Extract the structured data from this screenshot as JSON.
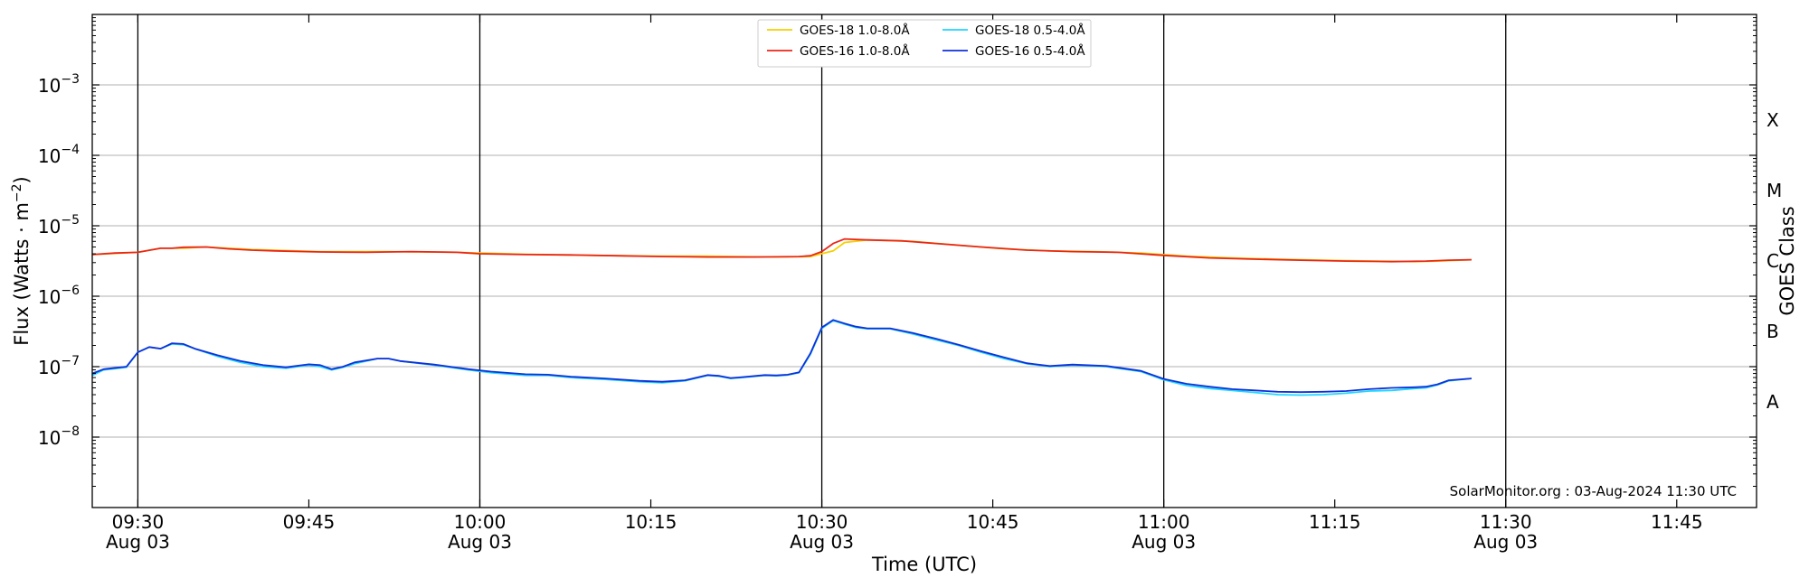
{
  "chart_data": {
    "type": "line",
    "xlabel": "Time (UTC)",
    "ylabel_main": "Flux (Watts · m",
    "ylabel_sup": "−2",
    "ylabel_close": ")",
    "right_label": "GOES Class",
    "y_scale": "log",
    "ylim": [
      1e-09,
      0.01
    ],
    "xlim": [
      "09:26",
      "11:52"
    ],
    "grid": "horizontal at each decade",
    "legend_position": "top-center",
    "credit": "SolarMonitor.org : 03-Aug-2024 11:30 UTC",
    "y_ticks": [
      {
        "value": 1e-08,
        "base": "10",
        "exp": "−8"
      },
      {
        "value": 1e-07,
        "base": "10",
        "exp": "−7"
      },
      {
        "value": 1e-06,
        "base": "10",
        "exp": "−6"
      },
      {
        "value": 1e-05,
        "base": "10",
        "exp": "−5"
      },
      {
        "value": 0.0001,
        "base": "10",
        "exp": "−4"
      },
      {
        "value": 0.001,
        "base": "10",
        "exp": "−3"
      }
    ],
    "x_ticks": [
      {
        "time": "09:30",
        "label": "09:30",
        "sub": "Aug 03",
        "major": true
      },
      {
        "time": "09:45",
        "label": "09:45",
        "sub": "",
        "major": false
      },
      {
        "time": "10:00",
        "label": "10:00",
        "sub": "Aug 03",
        "major": true
      },
      {
        "time": "10:15",
        "label": "10:15",
        "sub": "",
        "major": false
      },
      {
        "time": "10:30",
        "label": "10:30",
        "sub": "Aug 03",
        "major": true
      },
      {
        "time": "10:45",
        "label": "10:45",
        "sub": "",
        "major": false
      },
      {
        "time": "11:00",
        "label": "11:00",
        "sub": "Aug 03",
        "major": true
      },
      {
        "time": "11:15",
        "label": "11:15",
        "sub": "",
        "major": false
      },
      {
        "time": "11:30",
        "label": "11:30",
        "sub": "Aug 03",
        "major": true
      },
      {
        "time": "11:45",
        "label": "11:45",
        "sub": "",
        "major": false
      }
    ],
    "classes": [
      {
        "label": "A",
        "value": 3.16e-08
      },
      {
        "label": "B",
        "value": 3.16e-07
      },
      {
        "label": "C",
        "value": 3.16e-06
      },
      {
        "label": "M",
        "value": 3.16e-05
      },
      {
        "label": "X",
        "value": 0.000316
      }
    ],
    "series": [
      {
        "name": "GOES-18 1.0-8.0Å",
        "color": "#f5d000",
        "x": [
          "09:26",
          "09:30",
          "09:32",
          "09:34",
          "09:36",
          "09:40",
          "09:46",
          "09:52",
          "09:58",
          "10:04",
          "10:10",
          "10:16",
          "10:20",
          "10:26",
          "10:29",
          "10:31",
          "10:32",
          "10:34",
          "10:38",
          "10:42",
          "10:46",
          "10:50",
          "10:54",
          "10:58",
          "11:02",
          "11:06",
          "11:10",
          "11:16",
          "11:22",
          "11:24",
          "11:26",
          "11:27"
        ],
        "y": [
          3.9e-06,
          4.2e-06,
          4.8e-06,
          4.8e-06,
          5e-06,
          4.6e-06,
          4.3e-06,
          4.3e-06,
          4.2e-06,
          3.95e-06,
          3.8e-06,
          3.7e-06,
          3.7e-06,
          3.6e-06,
          3.65e-06,
          4.4e-06,
          5.8e-06,
          6.3e-06,
          6e-06,
          5.3e-06,
          4.7e-06,
          4.4e-06,
          4.3e-06,
          4.1e-06,
          3.7e-06,
          3.5e-06,
          3.35e-06,
          3.2e-06,
          3.1e-06,
          3.15e-06,
          3.25e-06,
          3.3e-06
        ]
      },
      {
        "name": "GOES-16 1.0-8.0Å",
        "color": "#e8261a",
        "x": [
          "09:26",
          "09:28",
          "09:30",
          "09:32",
          "09:33",
          "09:34",
          "09:36",
          "09:38",
          "09:40",
          "09:42",
          "09:46",
          "09:50",
          "09:54",
          "09:58",
          "10:00",
          "10:04",
          "10:08",
          "10:12",
          "10:16",
          "10:20",
          "10:24",
          "10:28",
          "10:29",
          "10:30",
          "10:31",
          "10:32",
          "10:34",
          "10:37",
          "10:40",
          "10:44",
          "10:48",
          "10:52",
          "10:56",
          "11:00",
          "11:04",
          "11:08",
          "11:12",
          "11:16",
          "11:20",
          "11:23",
          "11:25",
          "11:27"
        ],
        "y": [
          3.9e-06,
          4.1e-06,
          4.2e-06,
          4.8e-06,
          4.8e-06,
          4.95e-06,
          5e-06,
          4.7e-06,
          4.5e-06,
          4.4e-06,
          4.25e-06,
          4.2e-06,
          4.3e-06,
          4.2e-06,
          4e-06,
          3.9e-06,
          3.85e-06,
          3.75e-06,
          3.65e-06,
          3.6e-06,
          3.6e-06,
          3.65e-06,
          3.75e-06,
          4.3e-06,
          5.6e-06,
          6.5e-06,
          6.3e-06,
          6.1e-06,
          5.6e-06,
          5e-06,
          4.5e-06,
          4.3e-06,
          4.2e-06,
          3.8e-06,
          3.5e-06,
          3.35e-06,
          3.25e-06,
          3.15e-06,
          3.1e-06,
          3.15e-06,
          3.25e-06,
          3.3e-06
        ]
      },
      {
        "name": "GOES-18 0.5-4.0Å",
        "color": "#1fd6ff",
        "x": [
          "09:26",
          "09:27",
          "09:29",
          "09:30",
          "09:31",
          "09:32",
          "09:33",
          "09:34",
          "09:35",
          "09:37",
          "09:39",
          "09:41",
          "09:43",
          "09:45",
          "09:46",
          "09:47",
          "09:48",
          "09:49",
          "09:51",
          "09:52",
          "09:53",
          "09:56",
          "09:59",
          "10:01",
          "10:04",
          "10:06",
          "10:08",
          "10:11",
          "10:14",
          "10:16",
          "10:18",
          "10:20",
          "10:21",
          "10:22",
          "10:23",
          "10:25",
          "10:26",
          "10:27",
          "10:28",
          "10:29",
          "10:30",
          "10:31",
          "10:32",
          "10:33",
          "10:34",
          "10:36",
          "10:38",
          "10:40",
          "10:42",
          "10:44",
          "10:46",
          "10:48",
          "10:50",
          "10:52",
          "10:55",
          "10:58",
          "11:00",
          "11:02",
          "11:04",
          "11:06",
          "11:08",
          "11:10",
          "11:12",
          "11:14",
          "11:16",
          "11:18",
          "11:20",
          "11:22",
          "11:23",
          "11:24",
          "11:25",
          "11:27"
        ],
        "y": [
          7.5e-08,
          9e-08,
          9.8e-08,
          1.6e-07,
          1.9e-07,
          1.8e-07,
          2.1e-07,
          2.05e-07,
          1.8e-07,
          1.4e-07,
          1.15e-07,
          1e-07,
          9.5e-08,
          1.05e-07,
          1e-07,
          9e-08,
          9.8e-08,
          1.1e-07,
          1.3e-07,
          1.3e-07,
          1.2e-07,
          1.05e-07,
          9e-08,
          8.2e-08,
          7.5e-08,
          7.5e-08,
          7e-08,
          6.6e-08,
          6.1e-08,
          5.9e-08,
          6.3e-08,
          7.5e-08,
          7.3e-08,
          6.8e-08,
          7e-08,
          7.5e-08,
          7.4e-08,
          7.6e-08,
          8.2e-08,
          1.5e-07,
          3.5e-07,
          4.5e-07,
          4e-07,
          3.6e-07,
          3.45e-07,
          3.45e-07,
          2.9e-07,
          2.4e-07,
          2e-07,
          1.6e-07,
          1.3e-07,
          1.1e-07,
          1e-07,
          1.05e-07,
          1e-07,
          8.5e-08,
          6.5e-08,
          5.4e-08,
          4.9e-08,
          4.6e-08,
          4.3e-08,
          4e-08,
          3.95e-08,
          4e-08,
          4.2e-08,
          4.5e-08,
          4.6e-08,
          4.9e-08,
          5e-08,
          5.5e-08,
          6.3e-08,
          6.8e-08
        ]
      },
      {
        "name": "GOES-16 0.5-4.0Å",
        "color": "#1030d8",
        "x": [
          "09:26",
          "09:27",
          "09:29",
          "09:30",
          "09:31",
          "09:32",
          "09:33",
          "09:34",
          "09:35",
          "09:37",
          "09:39",
          "09:41",
          "09:43",
          "09:45",
          "09:46",
          "09:47",
          "09:48",
          "09:49",
          "09:51",
          "09:52",
          "09:53",
          "09:56",
          "09:59",
          "10:01",
          "10:04",
          "10:06",
          "10:08",
          "10:11",
          "10:14",
          "10:16",
          "10:18",
          "10:20",
          "10:21",
          "10:22",
          "10:23",
          "10:25",
          "10:26",
          "10:27",
          "10:28",
          "10:29",
          "10:30",
          "10:31",
          "10:32",
          "10:33",
          "10:34",
          "10:36",
          "10:38",
          "10:40",
          "10:42",
          "10:44",
          "10:46",
          "10:48",
          "10:50",
          "10:52",
          "10:55",
          "10:58",
          "11:00",
          "11:02",
          "11:04",
          "11:06",
          "11:08",
          "11:10",
          "11:12",
          "11:14",
          "11:16",
          "11:18",
          "11:20",
          "11:22",
          "11:23",
          "11:24",
          "11:25",
          "11:27"
        ],
        "y": [
          8e-08,
          9.2e-08,
          1e-07,
          1.6e-07,
          1.9e-07,
          1.8e-07,
          2.15e-07,
          2.1e-07,
          1.8e-07,
          1.45e-07,
          1.2e-07,
          1.05e-07,
          9.8e-08,
          1.08e-07,
          1.05e-07,
          9.2e-08,
          1e-07,
          1.15e-07,
          1.3e-07,
          1.3e-07,
          1.2e-07,
          1.07e-07,
          9.2e-08,
          8.5e-08,
          7.8e-08,
          7.7e-08,
          7.2e-08,
          6.8e-08,
          6.3e-08,
          6.1e-08,
          6.4e-08,
          7.6e-08,
          7.4e-08,
          6.9e-08,
          7.1e-08,
          7.6e-08,
          7.5e-08,
          7.7e-08,
          8.3e-08,
          1.55e-07,
          3.6e-07,
          4.6e-07,
          4.1e-07,
          3.7e-07,
          3.5e-07,
          3.5e-07,
          3e-07,
          2.5e-07,
          2.05e-07,
          1.65e-07,
          1.35e-07,
          1.12e-07,
          1.02e-07,
          1.07e-07,
          1.02e-07,
          8.7e-08,
          6.7e-08,
          5.7e-08,
          5.2e-08,
          4.8e-08,
          4.6e-08,
          4.4e-08,
          4.35e-08,
          4.4e-08,
          4.5e-08,
          4.8e-08,
          5e-08,
          5.1e-08,
          5.2e-08,
          5.6e-08,
          6.4e-08,
          6.8e-08
        ]
      }
    ]
  }
}
